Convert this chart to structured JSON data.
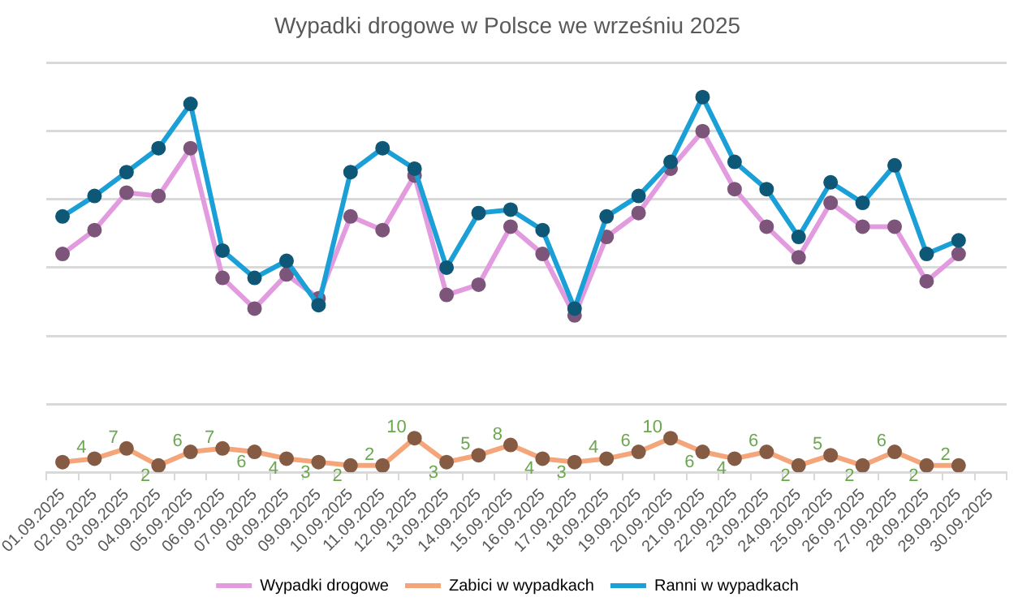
{
  "chart_data": {
    "type": "line",
    "title": "Wypadki drogowe w Polsce we wrześniu 2025",
    "categories": [
      "01.09.2025",
      "02.09.2025",
      "03.09.2025",
      "04.09.2025",
      "05.09.2025",
      "06.09.2025",
      "07.09.2025",
      "08.09.2025",
      "09.09.2025",
      "10.09.2025",
      "11.09.2025",
      "12.09.2025",
      "13.09.2025",
      "14.09.2025",
      "15.09.2025",
      "16.09.2025",
      "17.09.2025",
      "18.09.2025",
      "19.09.2025",
      "20.09.2025",
      "21.09.2025",
      "22.09.2025",
      "23.09.2025",
      "24.09.2025",
      "25.09.2025",
      "26.09.2025",
      "27.09.2025",
      "28.09.2025",
      "29.09.2025",
      "30.09.2025"
    ],
    "series": [
      {
        "name": "Wypadki drogowe",
        "color": "#e39be0",
        "values": [
          64,
          71,
          82,
          81,
          95,
          57,
          48,
          58,
          51,
          75,
          71,
          87,
          52,
          55,
          72,
          64,
          46,
          69,
          76,
          89,
          100,
          83,
          72,
          63,
          79,
          72,
          72,
          56,
          64,
          null
        ]
      },
      {
        "name": "Zabici w wypadkach",
        "color": "#f4a57a",
        "values": [
          3,
          4,
          7,
          2,
          6,
          7,
          6,
          4,
          3,
          2,
          2,
          10,
          3,
          5,
          8,
          4,
          3,
          4,
          6,
          10,
          6,
          4,
          6,
          2,
          5,
          2,
          6,
          2,
          2,
          null
        ],
        "value_labels": [
          null,
          "4",
          "7",
          "2",
          "6",
          "7",
          "6",
          "4",
          "3",
          "2",
          "2",
          "10",
          "3",
          "5",
          "8",
          "4",
          "3",
          "4",
          "6",
          "10",
          "6",
          "4",
          "6",
          "2",
          "5",
          "2",
          "6",
          "2",
          "2",
          null
        ]
      },
      {
        "name": "Ranni w wypadkach",
        "color": "#1a9fd6",
        "values": [
          75,
          81,
          88,
          95,
          108,
          65,
          57,
          62,
          49,
          88,
          95,
          89,
          60,
          76,
          77,
          71,
          48,
          75,
          81,
          91,
          110,
          91,
          83,
          69,
          85,
          79,
          90,
          64,
          68,
          null
        ]
      }
    ],
    "ylim": [
      0,
      120
    ],
    "yticks": [
      {
        "value": 0,
        "label": null
      },
      {
        "value": 20,
        "label": null
      },
      {
        "value": 40,
        "label": null
      },
      {
        "value": 60,
        "label": null
      },
      {
        "value": 80,
        "label": null
      },
      {
        "value": 100,
        "label": null
      },
      {
        "value": 120,
        "label": null
      }
    ],
    "tick_labels": "x",
    "grid": "y",
    "legend": "bottom",
    "marker": "circle",
    "line_style": "solid"
  }
}
